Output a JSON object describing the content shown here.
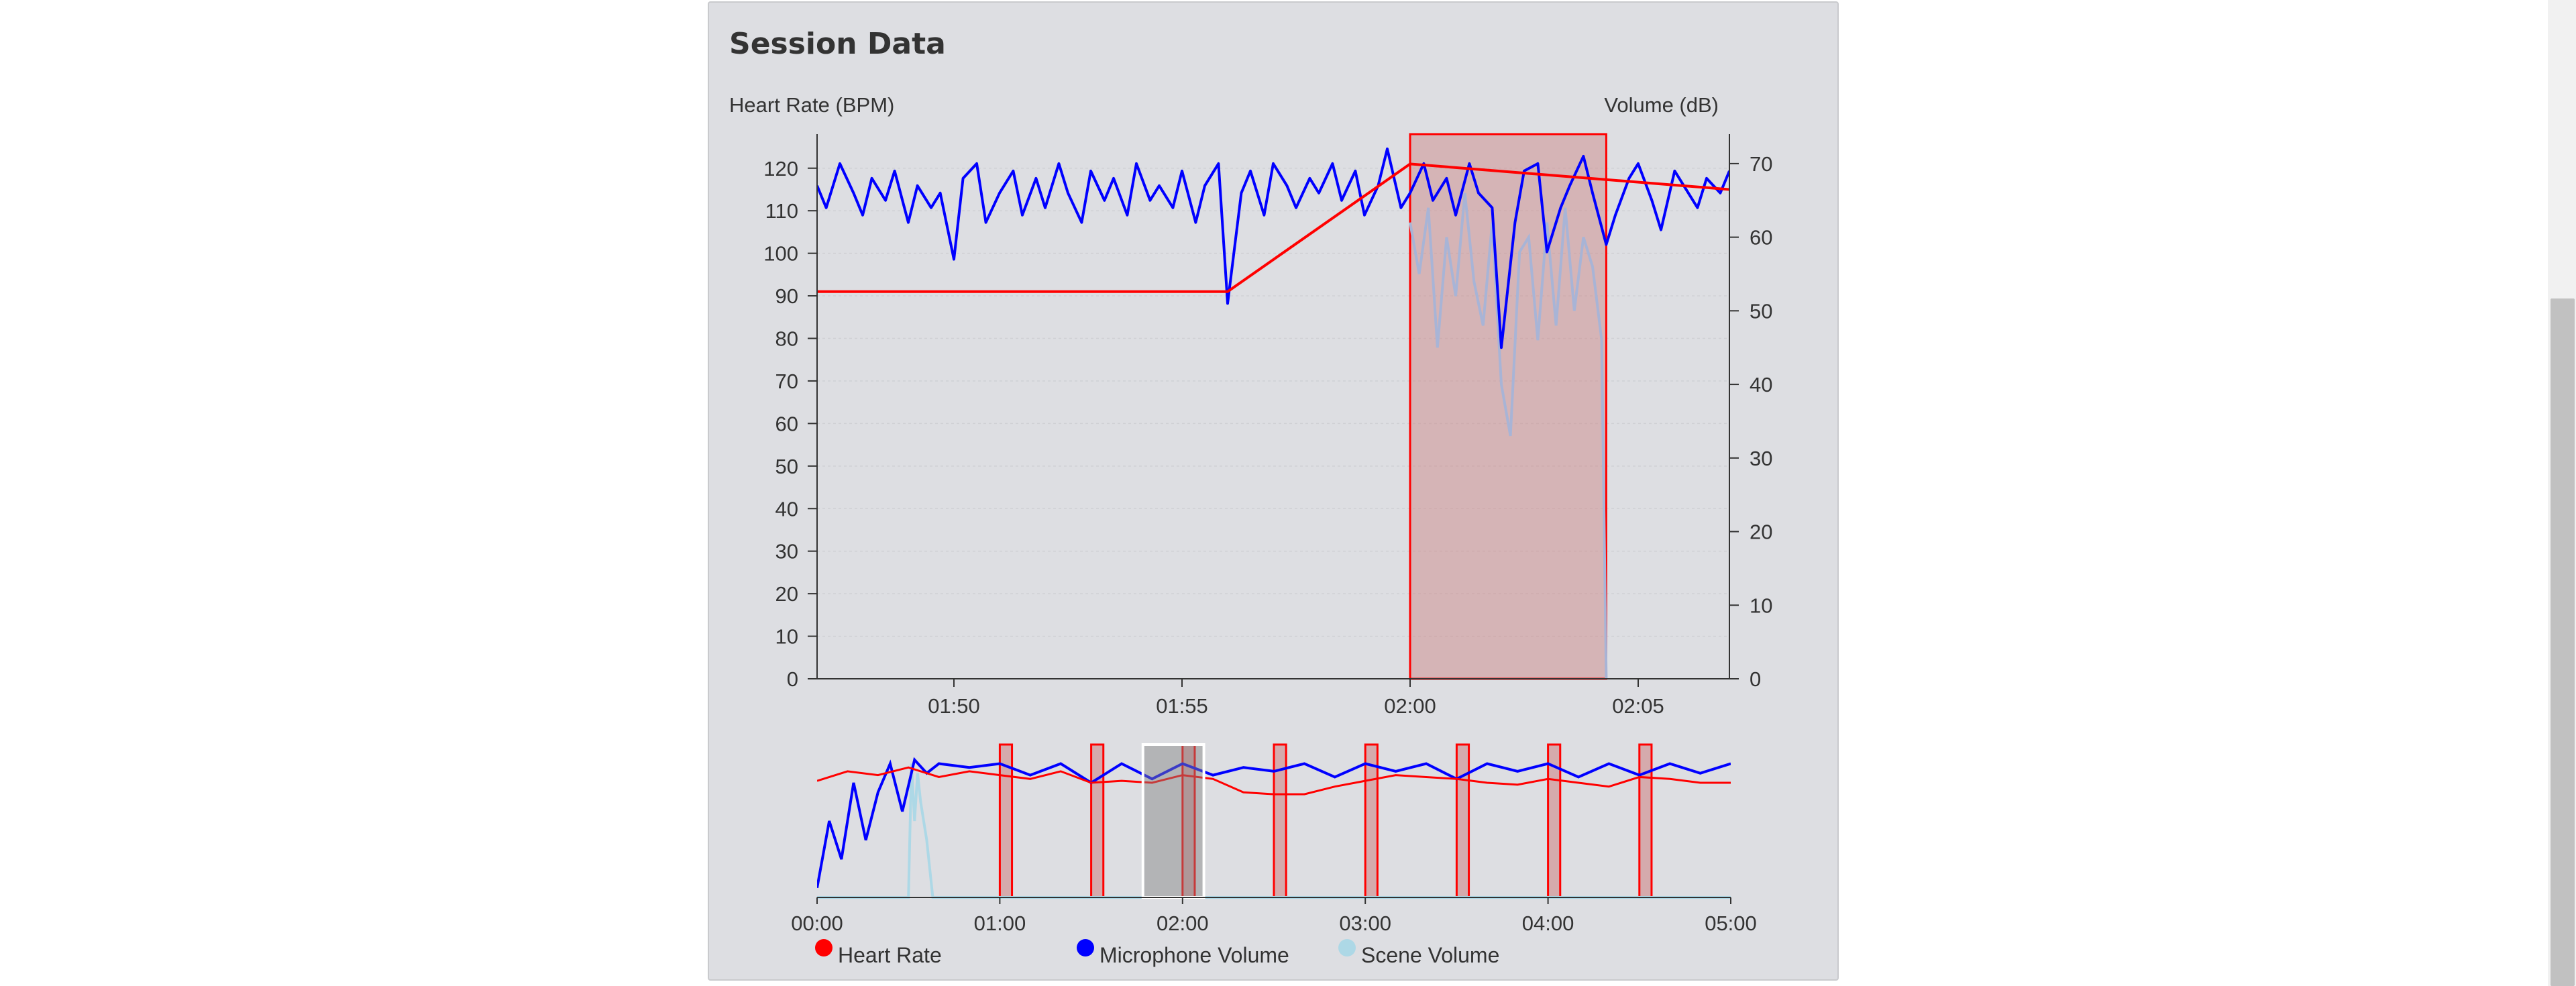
{
  "panel": {
    "title": "Session Data"
  },
  "colors": {
    "heart_rate": "#ff0000",
    "mic": "#0000ff",
    "scene": "#add8e6",
    "highlight": "#cd8080"
  },
  "chart_data": [
    {
      "type": "line",
      "title": "",
      "ylabel": "Heart Rate (BPM)",
      "ylabel_right": "Volume (dB)",
      "xlim": [
        "01:47",
        "02:07"
      ],
      "ylim": [
        0,
        128
      ],
      "ylim_right": [
        0,
        74
      ],
      "x_ticks": [
        "01:50",
        "01:55",
        "02:00",
        "02:05"
      ],
      "y_ticks": [
        0,
        10,
        20,
        30,
        40,
        50,
        60,
        70,
        80,
        90,
        100,
        110,
        120
      ],
      "y_ticks_right": [
        0,
        10,
        20,
        30,
        40,
        50,
        60,
        70
      ],
      "grid": true,
      "highlight": {
        "start": "02:00",
        "end": "02:04.3"
      },
      "series": [
        {
          "name": "Heart Rate",
          "axis": "left",
          "x": [
            "01:47",
            "01:56",
            "02:00",
            "02:07"
          ],
          "values": [
            91,
            91,
            121,
            115
          ]
        },
        {
          "name": "Microphone Volume",
          "axis": "right",
          "x": [
            "01:47.0",
            "01:47.2",
            "01:47.5",
            "01:47.8",
            "01:48.0",
            "01:48.2",
            "01:48.5",
            "01:48.7",
            "01:49.0",
            "01:49.2",
            "01:49.5",
            "01:49.7",
            "01:50.0",
            "01:50.2",
            "01:50.5",
            "01:50.7",
            "01:51.0",
            "01:51.3",
            "01:51.5",
            "01:51.8",
            "01:52.0",
            "01:52.3",
            "01:52.5",
            "01:52.8",
            "01:53.0",
            "01:53.3",
            "01:53.5",
            "01:53.8",
            "01:54.0",
            "01:54.3",
            "01:54.5",
            "01:54.8",
            "01:55.0",
            "01:55.3",
            "01:55.5",
            "01:55.8",
            "01:56.0",
            "01:56.3",
            "01:56.5",
            "01:56.8",
            "01:57.0",
            "01:57.3",
            "01:57.5",
            "01:57.8",
            "01:58.0",
            "01:58.3",
            "01:58.5",
            "01:58.8",
            "01:59.0",
            "01:59.3",
            "01:59.5",
            "01:59.8",
            "02:00.0",
            "02:00.3",
            "02:00.5",
            "02:00.8",
            "02:01.0",
            "02:01.3",
            "02:01.5",
            "02:01.8",
            "02:02.0",
            "02:02.3",
            "02:02.5",
            "02:02.8",
            "02:03.0",
            "02:03.3",
            "02:03.5",
            "02:03.8",
            "02:04.0",
            "02:04.3",
            "02:04.5",
            "02:04.8",
            "02:05.0",
            "02:05.3",
            "02:05.5",
            "02:05.8",
            "02:06.0",
            "02:06.3",
            "02:06.5",
            "02:06.8",
            "02:07.0"
          ],
          "values": [
            67,
            64,
            70,
            66,
            63,
            68,
            65,
            69,
            62,
            67,
            64,
            66,
            57,
            68,
            70,
            62,
            66,
            69,
            63,
            68,
            64,
            70,
            66,
            62,
            69,
            65,
            68,
            63,
            70,
            65,
            67,
            64,
            69,
            62,
            67,
            70,
            51,
            66,
            69,
            63,
            70,
            67,
            64,
            68,
            66,
            70,
            65,
            69,
            63,
            67,
            72,
            64,
            66,
            70,
            65,
            68,
            63,
            70,
            66,
            64,
            45,
            62,
            69,
            70,
            58,
            64,
            67,
            71,
            66,
            59,
            63,
            68,
            70,
            65,
            61,
            69,
            67,
            64,
            68,
            66,
            69
          ]
        },
        {
          "name": "Scene Volume",
          "axis": "right",
          "x": [
            "02:00.0",
            "02:00.2",
            "02:00.4",
            "02:00.6",
            "02:00.8",
            "02:01.0",
            "02:01.2",
            "02:01.4",
            "02:01.6",
            "02:01.8",
            "02:02.0",
            "02:02.2",
            "02:02.4",
            "02:02.6",
            "02:02.8",
            "02:03.0",
            "02:03.2",
            "02:03.4",
            "02:03.6",
            "02:03.8",
            "02:04.0",
            "02:04.2",
            "02:04.3"
          ],
          "values": [
            62,
            55,
            64,
            45,
            60,
            52,
            66,
            54,
            48,
            62,
            40,
            33,
            58,
            60,
            46,
            62,
            48,
            64,
            50,
            60,
            56,
            46,
            0
          ]
        }
      ]
    },
    {
      "type": "line",
      "title": "",
      "xlim": [
        "00:00",
        "05:00"
      ],
      "x_ticks": [
        "00:00",
        "01:00",
        "02:00",
        "03:00",
        "04:00",
        "05:00"
      ],
      "selected_window": {
        "start": "01:47",
        "end": "02:07"
      },
      "highlights": [
        {
          "start": "01:00",
          "end": "01:04"
        },
        {
          "start": "01:30",
          "end": "01:34"
        },
        {
          "start": "02:00",
          "end": "02:04"
        },
        {
          "start": "02:30",
          "end": "02:34"
        },
        {
          "start": "03:00",
          "end": "03:04"
        },
        {
          "start": "03:30",
          "end": "03:34"
        },
        {
          "start": "04:00",
          "end": "04:04"
        },
        {
          "start": "04:30",
          "end": "04:34"
        }
      ],
      "series": [
        {
          "name": "Heart Rate",
          "x": [
            "00:00",
            "00:10",
            "00:20",
            "00:30",
            "00:40",
            "00:50",
            "01:00",
            "01:10",
            "01:20",
            "01:30",
            "01:40",
            "01:50",
            "02:00",
            "02:10",
            "02:20",
            "02:30",
            "02:40",
            "02:50",
            "03:00",
            "03:10",
            "03:20",
            "03:30",
            "03:40",
            "03:50",
            "04:00",
            "04:10",
            "04:20",
            "04:30",
            "04:40",
            "04:50",
            "05:00"
          ],
          "values": [
            61,
            66,
            64,
            68,
            63,
            66,
            64,
            62,
            66,
            60,
            61,
            60,
            64,
            62,
            55,
            54,
            54,
            58,
            61,
            64,
            63,
            62,
            60,
            59,
            62,
            60,
            58,
            63,
            62,
            60,
            60
          ]
        },
        {
          "name": "Microphone Volume",
          "x": [
            "00:00",
            "00:04",
            "00:08",
            "00:12",
            "00:16",
            "00:20",
            "00:24",
            "00:28",
            "00:32",
            "00:36",
            "00:40",
            "00:50",
            "01:00",
            "01:10",
            "01:20",
            "01:30",
            "01:40",
            "01:50",
            "02:00",
            "02:10",
            "02:20",
            "02:30",
            "02:40",
            "02:50",
            "03:00",
            "03:10",
            "03:20",
            "03:30",
            "03:40",
            "03:50",
            "04:00",
            "04:10",
            "04:20",
            "04:30",
            "04:40",
            "04:50",
            "05:00"
          ],
          "values": [
            5,
            40,
            20,
            60,
            30,
            55,
            70,
            45,
            72,
            65,
            70,
            68,
            70,
            64,
            70,
            60,
            70,
            62,
            70,
            64,
            68,
            66,
            70,
            63,
            70,
            66,
            70,
            62,
            70,
            66,
            70,
            63,
            70,
            64,
            70,
            65,
            70
          ]
        },
        {
          "name": "Scene Volume",
          "x": [
            "00:00",
            "00:30",
            "00:31",
            "00:32",
            "00:33",
            "00:34",
            "00:36",
            "00:38",
            "05:00"
          ],
          "values": [
            0,
            0,
            70,
            40,
            65,
            50,
            30,
            0,
            0
          ]
        }
      ]
    }
  ],
  "legend": {
    "items": [
      {
        "label": "Heart Rate",
        "color": "#ff0000"
      },
      {
        "label": "Microphone Volume",
        "color": "#0000ff"
      },
      {
        "label": "Scene Volume",
        "color": "#add8e6"
      }
    ]
  }
}
